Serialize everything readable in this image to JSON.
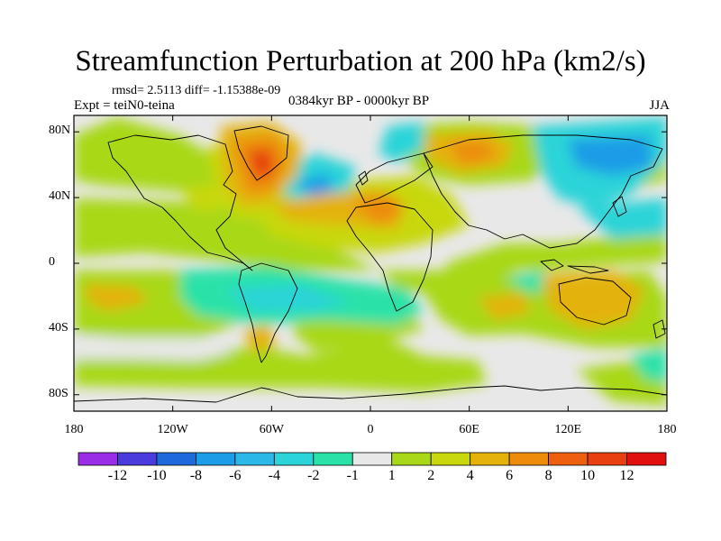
{
  "title": "Streamfunction Perturbation at 200 hPa (km2/s)",
  "stats": {
    "rmsd_text": "rmsd= 2.5113 diff= -1.15388e-09"
  },
  "experiment": "Expt = teiN0-teina",
  "period": "0384kyr BP - 0000kyr BP",
  "season": "JJA",
  "map": {
    "projection": "cylindrical equidistant",
    "lon_range": [
      -180,
      180
    ],
    "lat_range": [
      -90,
      90
    ],
    "lat_ticks": [
      {
        "value": 80,
        "label": "80N"
      },
      {
        "value": 40,
        "label": "40N"
      },
      {
        "value": 0,
        "label": "0"
      },
      {
        "value": -40,
        "label": "40S"
      },
      {
        "value": -80,
        "label": "80S"
      }
    ],
    "lon_ticks": [
      {
        "value": -180,
        "label": "180"
      },
      {
        "value": -120,
        "label": "120W"
      },
      {
        "value": -60,
        "label": "60W"
      },
      {
        "value": 0,
        "label": "0"
      },
      {
        "value": 60,
        "label": "60E"
      },
      {
        "value": 120,
        "label": "120E"
      },
      {
        "value": 180,
        "label": "180"
      }
    ]
  },
  "colorbar": {
    "levels": [
      "-12",
      "-10",
      "-8",
      "-6",
      "-4",
      "-2",
      "-1",
      "1",
      "2",
      "4",
      "6",
      "8",
      "10",
      "12"
    ],
    "colors": [
      "#9a2ee6",
      "#4a3cdc",
      "#1e6adc",
      "#1c9ce6",
      "#2bb8e8",
      "#2ad4d8",
      "#2ae2a8",
      "#e8e8e8",
      "#a8d818",
      "#c8d80c",
      "#e4b20a",
      "#ec8c0a",
      "#ec6010",
      "#e84010",
      "#e01010"
    ]
  }
}
